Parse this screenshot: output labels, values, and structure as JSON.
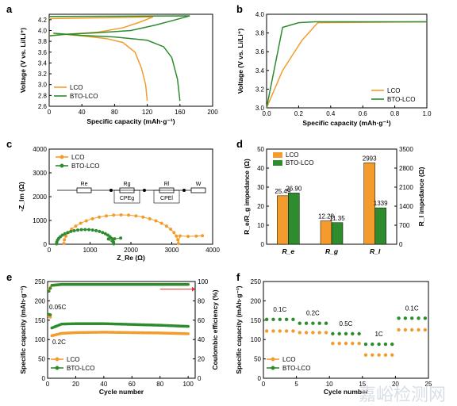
{
  "colors": {
    "lco": "#F39C2D",
    "bto": "#2E8B2E"
  },
  "chart_data": [
    {
      "id": "a",
      "type": "line",
      "panel_label": "a",
      "xlabel": "Specific capacity (mAh·g⁻¹)",
      "ylabel": "Voltage (V vs. Li/Li⁺)",
      "xlim": [
        0,
        200
      ],
      "ylim": [
        2.6,
        4.3
      ],
      "xticks": [
        0,
        40,
        80,
        120,
        160,
        200
      ],
      "yticks": [
        2.6,
        2.8,
        3.0,
        3.2,
        3.4,
        3.6,
        3.8,
        4.0,
        4.2
      ],
      "legend": "bottom-left",
      "series": [
        {
          "name": "LCO",
          "color_key": "lco",
          "points": [
            [
              0,
              3.9
            ],
            [
              10,
              3.92
            ],
            [
              30,
              3.94
            ],
            [
              60,
              3.97
            ],
            [
              90,
              4.05
            ],
            [
              110,
              4.15
            ],
            [
              127,
              4.25
            ],
            [
              0,
              4.22
            ],
            [
              10,
              3.94
            ],
            [
              40,
              3.9
            ],
            [
              70,
              3.85
            ],
            [
              90,
              3.78
            ],
            [
              105,
              3.6
            ],
            [
              113,
              3.3
            ],
            [
              118,
              3.0
            ],
            [
              120,
              2.7
            ]
          ]
        },
        {
          "name": "BTO-LCO",
          "color_key": "bto",
          "points": [
            [
              0,
              3.9
            ],
            [
              20,
              3.93
            ],
            [
              60,
              3.96
            ],
            [
              100,
              4.0
            ],
            [
              130,
              4.1
            ],
            [
              150,
              4.18
            ],
            [
              172,
              4.27
            ],
            [
              0,
              4.26
            ],
            [
              5,
              3.95
            ],
            [
              40,
              3.91
            ],
            [
              80,
              3.88
            ],
            [
              120,
              3.82
            ],
            [
              140,
              3.7
            ],
            [
              150,
              3.5
            ],
            [
              157,
              3.1
            ],
            [
              160,
              2.7
            ]
          ]
        }
      ]
    },
    {
      "id": "b",
      "type": "line",
      "panel_label": "b",
      "xlabel": "Specific capacity (mAh·g⁻¹)",
      "ylabel": "Voltage (V vs. Li/Li⁺)",
      "xlim": [
        0,
        1.0
      ],
      "ylim": [
        3.0,
        4.0
      ],
      "xticks": [
        0.0,
        0.2,
        0.4,
        0.6,
        0.8,
        1.0
      ],
      "yticks": [
        3.0,
        3.2,
        3.4,
        3.6,
        3.8,
        4.0
      ],
      "legend": "bottom-right",
      "series": [
        {
          "name": "LCO",
          "color_key": "lco",
          "points": [
            [
              0,
              3.0
            ],
            [
              0.1,
              3.4
            ],
            [
              0.22,
              3.72
            ],
            [
              0.32,
              3.91
            ],
            [
              1.0,
              3.92
            ]
          ]
        },
        {
          "name": "BTO-LCO",
          "color_key": "bto",
          "points": [
            [
              0,
              3.0
            ],
            [
              0.1,
              3.86
            ],
            [
              0.2,
              3.91
            ],
            [
              0.3,
              3.92
            ],
            [
              1.0,
              3.92
            ]
          ]
        }
      ]
    },
    {
      "id": "c",
      "type": "scatter",
      "panel_label": "c",
      "xlabel": "Z_Re (Ω)",
      "ylabel": "-Z_Im (Ω)",
      "xlim": [
        0,
        4000
      ],
      "ylim": [
        0,
        4000
      ],
      "xticks": [
        0,
        1000,
        2000,
        3000,
        4000
      ],
      "yticks": [
        0,
        1000,
        2000,
        3000,
        4000
      ],
      "legend": "top-left",
      "circuit_labels": [
        "Re",
        "Rg",
        "CPEg",
        "Rl",
        "CPEl",
        "W"
      ],
      "series": [
        {
          "name": "LCO",
          "color_key": "lco",
          "center": 1700,
          "radius": 1400,
          "offset": 300,
          "tail": [
            [
              3200,
              350
            ],
            [
              3400,
              330
            ],
            [
              3600,
              340
            ],
            [
              3750,
              360
            ]
          ]
        },
        {
          "name": "BTO-LCO",
          "color_key": "bto",
          "center": 850,
          "radius": 700,
          "offset": 150,
          "tail": [
            [
              1450,
              220
            ],
            [
              1600,
              230
            ],
            [
              1750,
              260
            ]
          ]
        }
      ]
    },
    {
      "id": "d",
      "type": "bar",
      "panel_label": "d",
      "ylabel": "R_e/R_g impedance (Ω)",
      "y2label": "R_l impedance (Ω)",
      "ylim": [
        0,
        50
      ],
      "y2lim": [
        0,
        3500
      ],
      "yticks": [
        0,
        10,
        20,
        30,
        40,
        50
      ],
      "y2ticks": [
        0,
        700,
        1400,
        2100,
        2800,
        3500
      ],
      "categories": [
        "R_e",
        "R_g",
        "R_l"
      ],
      "legend": "top-left",
      "series": [
        {
          "name": "LCO",
          "color_key": "lco",
          "values": [
            25.49,
            12.28,
            2993
          ],
          "labels": [
            "25.49",
            "12.28",
            "2993"
          ]
        },
        {
          "name": "BTO-LCO",
          "color_key": "bto",
          "values": [
            26.9,
            11.35,
            1339
          ],
          "labels": [
            "26.90",
            "11.35",
            "1339"
          ]
        }
      ]
    },
    {
      "id": "e",
      "type": "scatter",
      "panel_label": "e",
      "xlabel": "Cycle number",
      "ylabel": "Specific capacity (mAh·g⁻¹)",
      "y2label": "Coulombic efficiency (%)",
      "xlim": [
        0,
        105
      ],
      "ylim": [
        0,
        250
      ],
      "y2lim": [
        0,
        100
      ],
      "xticks": [
        0,
        20,
        40,
        60,
        80,
        100
      ],
      "yticks": [
        0,
        50,
        100,
        150,
        200,
        250
      ],
      "y2ticks": [
        0,
        20,
        40,
        60,
        80,
        100
      ],
      "legend": "bottom-left",
      "annotations": [
        "0.05C",
        "0.2C"
      ],
      "series": [
        {
          "name": "LCO",
          "color_key": "lco",
          "capacity": [
            [
              1,
              160
            ],
            [
              2,
              158
            ],
            [
              3,
              110
            ],
            [
              10,
              116
            ],
            [
              20,
              118
            ],
            [
              40,
              119
            ],
            [
              60,
              118
            ],
            [
              80,
              117
            ],
            [
              100,
              115
            ]
          ],
          "efficiency": [
            [
              1,
              92
            ],
            [
              3,
              96
            ],
            [
              10,
              97
            ],
            [
              50,
              97
            ],
            [
              100,
              97
            ]
          ]
        },
        {
          "name": "BTO-LCO",
          "color_key": "bto",
          "capacity": [
            [
              1,
              165
            ],
            [
              2,
              164
            ],
            [
              3,
              130
            ],
            [
              10,
              140
            ],
            [
              20,
              141
            ],
            [
              40,
              141
            ],
            [
              60,
              139
            ],
            [
              80,
              137
            ],
            [
              100,
              134
            ]
          ],
          "efficiency": [
            [
              1,
              90
            ],
            [
              3,
              96
            ],
            [
              10,
              97
            ],
            [
              50,
              97
            ],
            [
              100,
              97
            ]
          ]
        }
      ]
    },
    {
      "id": "f",
      "type": "scatter",
      "panel_label": "f",
      "xlabel": "Cycle number",
      "ylabel": "Specific capacity (mAh·g⁻¹)",
      "xlim": [
        0,
        25
      ],
      "ylim": [
        0,
        250
      ],
      "xticks": [
        0,
        5,
        10,
        15,
        20,
        25
      ],
      "yticks": [
        0,
        50,
        100,
        150,
        200,
        250
      ],
      "legend": "bottom-left",
      "rate_labels": [
        "0.1C",
        "0.2C",
        "0.5C",
        "1C",
        "0.1C"
      ],
      "series": [
        {
          "name": "LCO",
          "color_key": "lco",
          "values": [
            122,
            122,
            122,
            122,
            122,
            118,
            118,
            118,
            118,
            118,
            90,
            90,
            90,
            90,
            90,
            60,
            60,
            60,
            60,
            60,
            125,
            125,
            125,
            125,
            125
          ]
        },
        {
          "name": "BTO-LCO",
          "color_key": "bto",
          "values": [
            152,
            152,
            152,
            152,
            152,
            142,
            142,
            142,
            142,
            142,
            115,
            115,
            115,
            115,
            115,
            88,
            88,
            88,
            88,
            88,
            155,
            155,
            155,
            155,
            155
          ]
        }
      ]
    }
  ],
  "watermark": "嘉峪检测网"
}
